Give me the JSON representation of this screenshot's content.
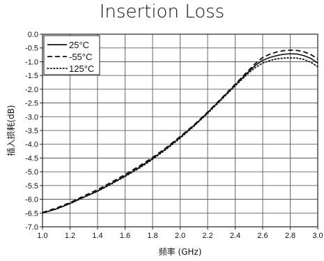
{
  "chart_data": {
    "type": "line",
    "title": "Insertion Loss",
    "xlabel": "频率 (GHz)",
    "ylabel": "插入损耗(dB)",
    "xlim": [
      1.0,
      3.0
    ],
    "ylim": [
      -7.0,
      0.0
    ],
    "xticks": [
      "1.0",
      "1.2",
      "1.4",
      "1.6",
      "1.8",
      "2.0",
      "2.2",
      "2.4",
      "2.6",
      "2.8",
      "3.0"
    ],
    "yticks": [
      "0.0",
      "-0.5",
      "-1.0",
      "-1.5",
      "-2.0",
      "-2.5",
      "-3.0",
      "-3.5",
      "-4.0",
      "-4.5",
      "-5.0",
      "-5.5",
      "-6.0",
      "-6.5",
      "-7.0"
    ],
    "grid": true,
    "legend_position": "top-left",
    "series": [
      {
        "name": "25°C",
        "style": "solid",
        "x": [
          1.0,
          1.1,
          1.2,
          1.3,
          1.4,
          1.5,
          1.6,
          1.7,
          1.8,
          1.9,
          2.0,
          2.1,
          2.2,
          2.3,
          2.4,
          2.5,
          2.55,
          2.6,
          2.65,
          2.7,
          2.75,
          2.8,
          2.85,
          2.9,
          2.95,
          3.0
        ],
        "y": [
          -6.5,
          -6.35,
          -6.15,
          -5.92,
          -5.7,
          -5.43,
          -5.15,
          -4.85,
          -4.52,
          -4.15,
          -3.75,
          -3.32,
          -2.85,
          -2.35,
          -1.85,
          -1.35,
          -1.12,
          -0.95,
          -0.85,
          -0.78,
          -0.73,
          -0.71,
          -0.72,
          -0.78,
          -0.88,
          -1.05
        ]
      },
      {
        "name": "-55°C",
        "style": "dashed",
        "x": [
          1.0,
          1.1,
          1.2,
          1.3,
          1.4,
          1.5,
          1.6,
          1.7,
          1.8,
          1.9,
          2.0,
          2.1,
          2.2,
          2.3,
          2.4,
          2.5,
          2.55,
          2.6,
          2.65,
          2.7,
          2.75,
          2.8,
          2.85,
          2.9,
          2.95,
          3.0
        ],
        "y": [
          -6.48,
          -6.32,
          -6.12,
          -5.88,
          -5.65,
          -5.38,
          -5.1,
          -4.8,
          -4.48,
          -4.12,
          -3.72,
          -3.3,
          -2.83,
          -2.33,
          -1.82,
          -1.3,
          -1.05,
          -0.85,
          -0.73,
          -0.65,
          -0.6,
          -0.58,
          -0.59,
          -0.64,
          -0.74,
          -0.9
        ]
      },
      {
        "name": "125°C",
        "style": "dotted",
        "x": [
          1.0,
          1.1,
          1.2,
          1.3,
          1.4,
          1.5,
          1.6,
          1.7,
          1.8,
          1.9,
          2.0,
          2.1,
          2.2,
          2.3,
          2.4,
          2.5,
          2.55,
          2.6,
          2.65,
          2.7,
          2.75,
          2.8,
          2.85,
          2.9,
          2.95,
          3.0
        ],
        "y": [
          -6.5,
          -6.36,
          -6.16,
          -5.93,
          -5.71,
          -5.45,
          -5.17,
          -4.88,
          -4.55,
          -4.18,
          -3.78,
          -3.35,
          -2.88,
          -2.38,
          -1.88,
          -1.4,
          -1.2,
          -1.05,
          -0.96,
          -0.9,
          -0.87,
          -0.86,
          -0.87,
          -0.92,
          -1.02,
          -1.18
        ]
      }
    ]
  }
}
